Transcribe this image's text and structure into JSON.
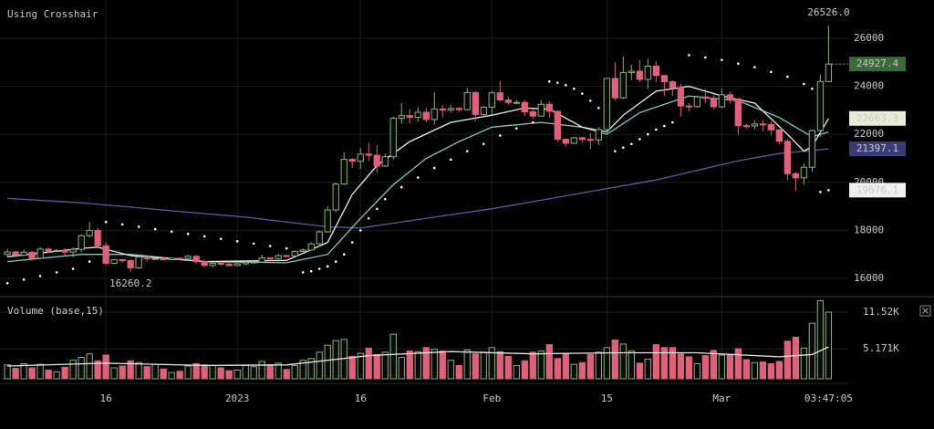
{
  "chart_data": {
    "type": "candlestick",
    "title": "Using Crosshair",
    "volume_title": "Volume (base,15)",
    "xlim": [
      -0.9,
      102.4
    ],
    "ylim": [
      15240,
      27597
    ],
    "yticks": [
      16000,
      18000,
      20000,
      22000,
      24000,
      26000
    ],
    "volume_ylim": [
      -790,
      14040
    ],
    "volume_yticks": [
      {
        "value": 5171,
        "label": "5.171K"
      },
      {
        "value": 11520,
        "label": "11.52K"
      }
    ],
    "xticks": [
      {
        "value": 12,
        "label": "16"
      },
      {
        "value": 28,
        "label": "2023"
      },
      {
        "value": 43,
        "label": "16"
      },
      {
        "value": 59,
        "label": "Feb"
      },
      {
        "value": 73,
        "label": "15"
      },
      {
        "value": 87,
        "label": "Mar"
      }
    ],
    "crosshair_time": {
      "value": 100,
      "label": "03:47:05"
    },
    "grid": true,
    "up_color": "#8bb174",
    "down_color": "#e0607a",
    "ohlc": [
      [
        17000,
        17230,
        16900,
        17100
      ],
      [
        17100,
        17150,
        16880,
        16970
      ],
      [
        16970,
        17200,
        16920,
        17090
      ],
      [
        17090,
        17130,
        16760,
        16840
      ],
      [
        16840,
        17300,
        16800,
        17220
      ],
      [
        17220,
        17280,
        17060,
        17130
      ],
      [
        17130,
        17220,
        17090,
        17160
      ],
      [
        17160,
        17260,
        16950,
        17100
      ],
      [
        17100,
        17290,
        16880,
        17210
      ],
      [
        17210,
        17840,
        17100,
        17780
      ],
      [
        17780,
        18350,
        17700,
        18000
      ],
      [
        18000,
        18100,
        17300,
        17360
      ],
      [
        17360,
        17500,
        16550,
        16630
      ],
      [
        16630,
        16810,
        16600,
        16780
      ],
      [
        16780,
        16800,
        16650,
        16740
      ],
      [
        16740,
        16790,
        16260.2,
        16440
      ],
      [
        16440,
        16950,
        16400,
        16900
      ],
      [
        16900,
        16900,
        16700,
        16820
      ],
      [
        16820,
        16870,
        16770,
        16830
      ],
      [
        16830,
        16860,
        16760,
        16780
      ],
      [
        16780,
        16860,
        16780,
        16840
      ],
      [
        16840,
        16860,
        16800,
        16830
      ],
      [
        16830,
        16980,
        16810,
        16920
      ],
      [
        16920,
        16970,
        16600,
        16700
      ],
      [
        16700,
        16780,
        16480,
        16540
      ],
      [
        16540,
        16680,
        16470,
        16630
      ],
      [
        16630,
        16650,
        16520,
        16600
      ],
      [
        16600,
        16630,
        16490,
        16540
      ],
      [
        16540,
        16630,
        16510,
        16610
      ],
      [
        16610,
        16760,
        16550,
        16670
      ],
      [
        16670,
        16780,
        16640,
        16680
      ],
      [
        16680,
        16990,
        16650,
        16850
      ],
      [
        16850,
        16880,
        16740,
        16830
      ],
      [
        16830,
        17020,
        16790,
        16950
      ],
      [
        16950,
        16980,
        16900,
        16940
      ],
      [
        16940,
        17170,
        16920,
        17120
      ],
      [
        17120,
        17250,
        17100,
        17180
      ],
      [
        17180,
        17500,
        17160,
        17440
      ],
      [
        17440,
        18000,
        17320,
        17940
      ],
      [
        17940,
        19000,
        17920,
        18850
      ],
      [
        18850,
        19990,
        18750,
        19930
      ],
      [
        19930,
        21250,
        19900,
        20960
      ],
      [
        20960,
        21000,
        20600,
        20880
      ],
      [
        20880,
        21430,
        20560,
        21180
      ],
      [
        21180,
        21650,
        20880,
        21130
      ],
      [
        21130,
        21560,
        20400,
        20680
      ],
      [
        20680,
        21200,
        20650,
        21070
      ],
      [
        21070,
        22740,
        20950,
        22670
      ],
      [
        22670,
        23300,
        22450,
        22780
      ],
      [
        22780,
        23050,
        22450,
        22710
      ],
      [
        22710,
        23130,
        22520,
        22920
      ],
      [
        22920,
        23100,
        22500,
        22620
      ],
      [
        22620,
        23750,
        22400,
        23060
      ],
      [
        23060,
        23220,
        22700,
        23010
      ],
      [
        23010,
        23220,
        22910,
        23080
      ],
      [
        23080,
        23150,
        22950,
        23030
      ],
      [
        23030,
        23950,
        23000,
        23740
      ],
      [
        23740,
        23800,
        22550,
        22830
      ],
      [
        22830,
        23180,
        22720,
        23130
      ],
      [
        23130,
        23800,
        22800,
        23730
      ],
      [
        23730,
        24220,
        23370,
        23430
      ],
      [
        23430,
        23580,
        23220,
        23330
      ],
      [
        23330,
        23440,
        23250,
        23330
      ],
      [
        23330,
        23430,
        22750,
        22940
      ],
      [
        22940,
        23050,
        22640,
        22760
      ],
      [
        22760,
        23430,
        22740,
        23250
      ],
      [
        23250,
        23380,
        22710,
        22960
      ],
      [
        22960,
        23010,
        21680,
        21800
      ],
      [
        21800,
        21800,
        21490,
        21630
      ],
      [
        21630,
        21890,
        21600,
        21860
      ],
      [
        21860,
        21900,
        21650,
        21790
      ],
      [
        21790,
        22050,
        21380,
        21770
      ],
      [
        21770,
        22300,
        21550,
        22200
      ],
      [
        22200,
        24360,
        22050,
        24330
      ],
      [
        24330,
        25000,
        23400,
        23520
      ],
      [
        23520,
        25250,
        23470,
        24570
      ],
      [
        24570,
        24900,
        24250,
        24630
      ],
      [
        24630,
        25100,
        24180,
        24290
      ],
      [
        24290,
        25150,
        23900,
        24840
      ],
      [
        24840,
        25050,
        24170,
        24450
      ],
      [
        24450,
        24480,
        23600,
        24190
      ],
      [
        24190,
        24250,
        23600,
        23950
      ],
      [
        23950,
        24100,
        22750,
        23180
      ],
      [
        23180,
        23300,
        22950,
        23160
      ],
      [
        23160,
        23620,
        23100,
        23560
      ],
      [
        23560,
        23880,
        23310,
        23500
      ],
      [
        23500,
        23620,
        23050,
        23150
      ],
      [
        23150,
        23900,
        23100,
        23650
      ],
      [
        23650,
        23780,
        23280,
        23480
      ],
      [
        23480,
        23500,
        21980,
        22360
      ],
      [
        22360,
        22440,
        22250,
        22350
      ],
      [
        22350,
        22600,
        22210,
        22430
      ],
      [
        22430,
        22600,
        22120,
        22410
      ],
      [
        22410,
        22550,
        21950,
        22190
      ],
      [
        22190,
        22200,
        21600,
        21710
      ],
      [
        21710,
        21800,
        20100,
        20360
      ],
      [
        20360,
        20430,
        19650,
        20190
      ],
      [
        20190,
        20790,
        19900,
        20630
      ],
      [
        20630,
        22200,
        20450,
        22160
      ],
      [
        22160,
        24500,
        21900,
        24200
      ],
      [
        24200,
        26526,
        24200,
        24927.4
      ]
    ],
    "volume": [
      2400,
      1800,
      2600,
      1900,
      2500,
      1500,
      1200,
      2000,
      3200,
      3700,
      4300,
      3100,
      4100,
      1900,
      2200,
      3100,
      2800,
      2100,
      2500,
      1700,
      1100,
      1300,
      2200,
      2600,
      2400,
      2300,
      1900,
      1400,
      1500,
      2300,
      2100,
      3000,
      2400,
      2700,
      1600,
      2300,
      3200,
      3500,
      4600,
      5800,
      6600,
      6800,
      3900,
      4400,
      5300,
      4200,
      4600,
      7700,
      3700,
      4800,
      4700,
      5400,
      5100,
      4800,
      3200,
      2300,
      5000,
      4300,
      4600,
      5400,
      4700,
      3900,
      2300,
      3100,
      4600,
      4800,
      5900,
      3500,
      4400,
      2500,
      2800,
      4200,
      4600,
      5400,
      6700,
      6000,
      4800,
      2700,
      3400,
      5900,
      5400,
      5400,
      4300,
      3800,
      2600,
      4000,
      4900,
      4100,
      4200,
      5200,
      3300,
      2800,
      2900,
      2600,
      3000,
      6500,
      7200,
      5300,
      9600,
      13500,
      11520
    ],
    "overlays": [
      {
        "color": "#5b5a9e",
        "x": [
          0,
          9,
          19,
          29,
          39,
          43,
          49,
          59,
          69,
          79,
          89,
          94,
          100
        ],
        "values": [
          19330,
          19150,
          18850,
          18550,
          18150,
          18100,
          18400,
          18900,
          19500,
          20100,
          20900,
          21200,
          21397.1
        ]
      },
      {
        "color": "#7fc9be",
        "x": [
          0,
          9,
          15,
          24,
          34,
          39,
          43,
          47,
          51,
          55,
          59,
          65,
          70,
          73,
          77,
          83,
          89,
          94,
          98,
          100
        ],
        "values": [
          16700,
          17000,
          17000,
          16700,
          16650,
          17000,
          18500,
          19900,
          21000,
          21700,
          22300,
          22500,
          22300,
          22000,
          22900,
          23600,
          23400,
          22700,
          21900,
          22100
        ]
      },
      {
        "color": "#ececec",
        "x": [
          0,
          9,
          11,
          15,
          24,
          34,
          39,
          42,
          45,
          49,
          54,
          59,
          63,
          66,
          70,
          73,
          75,
          79,
          83,
          87,
          91,
          95,
          97,
          98,
          100
        ],
        "values": [
          16900,
          17250,
          17300,
          16950,
          16700,
          16750,
          17500,
          19500,
          20700,
          21700,
          22500,
          22800,
          23100,
          23050,
          22300,
          22100,
          22800,
          23800,
          24000,
          23600,
          23300,
          22000,
          21300,
          21500,
          22663.3
        ]
      }
    ],
    "sar": {
      "color": "#ffffff",
      "x": [
        0,
        2,
        4,
        6,
        8,
        10,
        12,
        14,
        16,
        18,
        20,
        22,
        24,
        26,
        28,
        30,
        32,
        34,
        36,
        37,
        38,
        39,
        40,
        41,
        42,
        43,
        44,
        45,
        46,
        48,
        50,
        52,
        54,
        56,
        58,
        60,
        62,
        64,
        66,
        67,
        68,
        69,
        70,
        71,
        72,
        74,
        75,
        76,
        77,
        78,
        79,
        80,
        81,
        83,
        85,
        87,
        89,
        91,
        93,
        95,
        97,
        98,
        99,
        100
      ],
      "values": [
        15800,
        15950,
        16100,
        16250,
        16400,
        16700,
        18350,
        18250,
        18150,
        18050,
        17950,
        17850,
        17750,
        17650,
        17550,
        17450,
        17350,
        17250,
        16250,
        16300,
        16400,
        16500,
        16700,
        17000,
        17500,
        18000,
        18500,
        18900,
        19300,
        19800,
        20200,
        20600,
        20950,
        21300,
        21600,
        21950,
        22250,
        22500,
        24200,
        24150,
        24050,
        23900,
        23700,
        23400,
        23100,
        21300,
        21450,
        21600,
        21800,
        22000,
        22200,
        22350,
        22500,
        25300,
        25200,
        25100,
        24950,
        24800,
        24600,
        24400,
        24100,
        23900,
        19600,
        19676.1
      ]
    },
    "volume_ma": {
      "color": "#e8e8e8",
      "x": [
        0,
        12,
        24,
        34,
        44,
        54,
        64,
        74,
        84,
        94,
        98,
        100
      ],
      "values": [
        2200,
        2700,
        2300,
        2400,
        4000,
        4700,
        4300,
        4500,
        4500,
        3800,
        4200,
        5500
      ]
    },
    "high": {
      "x": 100,
      "value": 26526,
      "label": "26526.0"
    },
    "low": {
      "x": 15,
      "value": 16260.2
    },
    "price_labels": [
      {
        "value": 24927.4,
        "color": "#3b6a3a",
        "text_color": "#e6e6e6"
      },
      {
        "value": 22663.3,
        "color": "#e9ecd6",
        "text_color": "#111111"
      },
      {
        "value": 21397.1,
        "color": "#3a3d72",
        "text_color": "#e6e6e6"
      },
      {
        "value": 19676.1,
        "color": "#f0f0f0",
        "text_color": "#111111"
      }
    ]
  }
}
